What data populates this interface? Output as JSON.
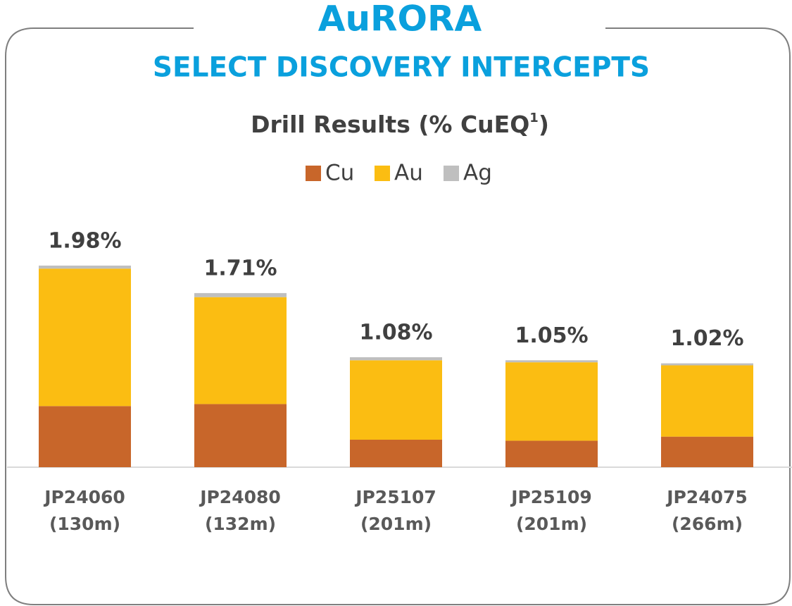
{
  "chart_data": {
    "type": "stacked_bar",
    "header": "AuRORA",
    "subtitle": "SELECT DISCOVERY INTERCEPTS",
    "title": "Drill Results (% CuEQ",
    "title_footnote": "1",
    "title_close": ")",
    "categories": [
      "JP24060",
      "JP24080",
      "JP25107",
      "JP25109",
      "JP24075"
    ],
    "category_sublabels": [
      "(130m)",
      "(132m)",
      "(201m)",
      "(201m)",
      "(266m)"
    ],
    "series": [
      {
        "name": "Cu",
        "color": "#c8662a",
        "values": [
          0.6,
          0.62,
          0.27,
          0.26,
          0.3
        ]
      },
      {
        "name": "Au",
        "color": "#fbbd12",
        "values": [
          1.35,
          1.05,
          0.78,
          0.77,
          0.7
        ]
      },
      {
        "name": "Ag",
        "color": "#bfbfbf",
        "values": [
          0.03,
          0.04,
          0.03,
          0.02,
          0.02
        ]
      }
    ],
    "totals": [
      1.98,
      1.71,
      1.08,
      1.05,
      1.02
    ],
    "total_labels": [
      "1.98%",
      "1.71%",
      "1.08%",
      "1.05%",
      "1.02%"
    ],
    "ylim": [
      0,
      2.0
    ],
    "legend": "top"
  }
}
